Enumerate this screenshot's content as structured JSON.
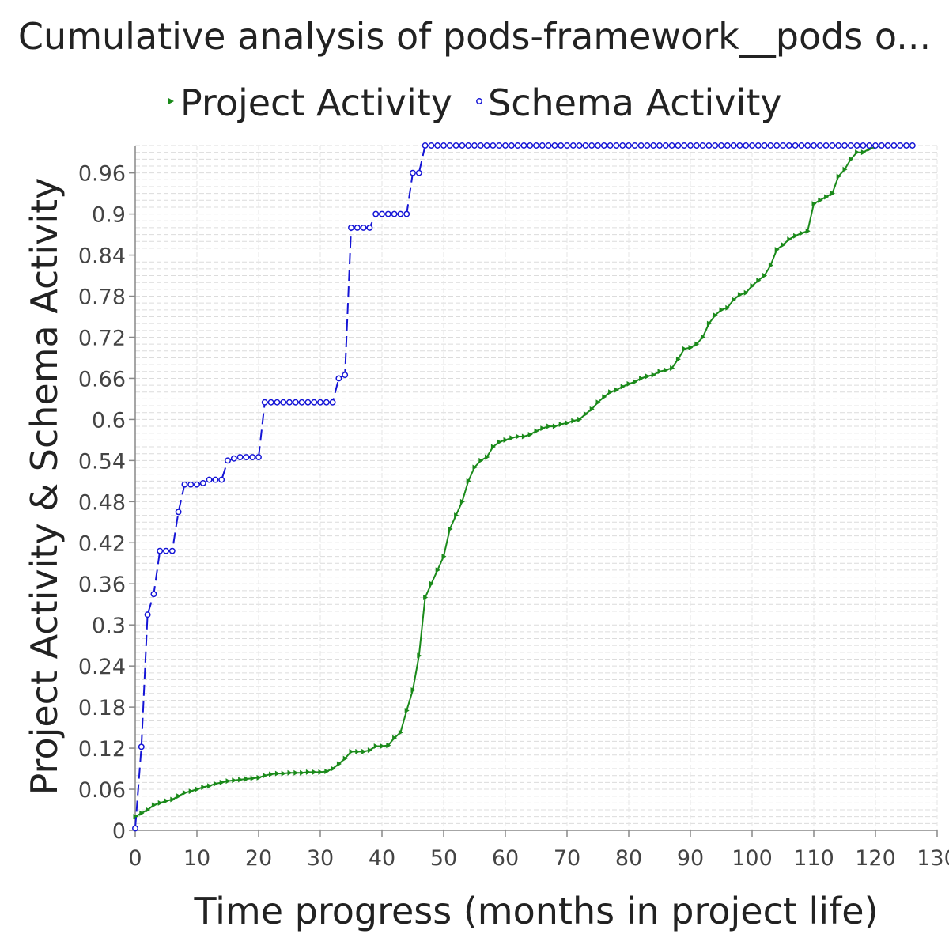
{
  "chart_data": {
    "type": "line",
    "title": "Cumulative analysis of pods-framework__pods o...",
    "xlabel": "Time progress (months in project life)",
    "ylabel": "Project Activity & Schema Activity",
    "xlim": [
      0,
      130
    ],
    "ylim": [
      0,
      1.0
    ],
    "x_ticks": [
      0,
      10,
      20,
      30,
      40,
      50,
      60,
      70,
      80,
      90,
      100,
      110,
      120,
      130
    ],
    "y_ticks": [
      0,
      0.06,
      0.12,
      0.18,
      0.24,
      0.3,
      0.36,
      0.42,
      0.48,
      0.54,
      0.6,
      0.66,
      0.72,
      0.78,
      0.84,
      0.9,
      0.96
    ],
    "grid": true,
    "legend_position": "top",
    "series": [
      {
        "name": "Project Activity",
        "color": "#1a8a1a",
        "marker": "triangle-right",
        "line_style": "solid",
        "x": [
          0,
          1,
          2,
          3,
          4,
          5,
          6,
          7,
          8,
          9,
          10,
          11,
          12,
          13,
          14,
          15,
          16,
          17,
          18,
          19,
          20,
          21,
          22,
          23,
          24,
          25,
          26,
          27,
          28,
          29,
          30,
          31,
          32,
          33,
          34,
          35,
          36,
          37,
          38,
          39,
          40,
          41,
          42,
          43,
          44,
          45,
          46,
          47,
          48,
          49,
          50,
          51,
          52,
          53,
          54,
          55,
          56,
          57,
          58,
          59,
          60,
          61,
          62,
          63,
          64,
          65,
          66,
          67,
          68,
          69,
          70,
          71,
          72,
          73,
          74,
          75,
          76,
          77,
          78,
          79,
          80,
          81,
          82,
          83,
          84,
          85,
          86,
          87,
          88,
          89,
          90,
          91,
          92,
          93,
          94,
          95,
          96,
          97,
          98,
          99,
          100,
          101,
          102,
          103,
          104,
          105,
          106,
          107,
          108,
          109,
          110,
          111,
          112,
          113,
          114,
          115,
          116,
          117,
          118,
          119,
          120,
          121,
          122,
          123,
          124,
          125,
          126
        ],
        "values": [
          0.02,
          0.025,
          0.03,
          0.037,
          0.04,
          0.043,
          0.045,
          0.05,
          0.055,
          0.057,
          0.06,
          0.063,
          0.065,
          0.068,
          0.07,
          0.072,
          0.073,
          0.074,
          0.075,
          0.076,
          0.077,
          0.08,
          0.082,
          0.083,
          0.083,
          0.084,
          0.084,
          0.084,
          0.085,
          0.085,
          0.085,
          0.086,
          0.09,
          0.097,
          0.105,
          0.115,
          0.115,
          0.115,
          0.117,
          0.123,
          0.123,
          0.124,
          0.135,
          0.143,
          0.175,
          0.205,
          0.255,
          0.34,
          0.36,
          0.38,
          0.4,
          0.44,
          0.46,
          0.48,
          0.51,
          0.53,
          0.54,
          0.545,
          0.56,
          0.567,
          0.57,
          0.573,
          0.575,
          0.575,
          0.578,
          0.583,
          0.587,
          0.59,
          0.59,
          0.593,
          0.595,
          0.598,
          0.6,
          0.608,
          0.615,
          0.625,
          0.633,
          0.64,
          0.643,
          0.648,
          0.652,
          0.655,
          0.66,
          0.663,
          0.665,
          0.67,
          0.672,
          0.675,
          0.688,
          0.703,
          0.705,
          0.71,
          0.72,
          0.74,
          0.752,
          0.76,
          0.763,
          0.775,
          0.782,
          0.785,
          0.795,
          0.803,
          0.81,
          0.825,
          0.848,
          0.855,
          0.863,
          0.868,
          0.872,
          0.875,
          0.915,
          0.92,
          0.925,
          0.93,
          0.955,
          0.965,
          0.98,
          0.99,
          0.99,
          0.995,
          0.998,
          1.0,
          1.0,
          1.0,
          1.0,
          1.0,
          1.0
        ]
      },
      {
        "name": "Schema Activity",
        "color": "#1515d6",
        "marker": "circle",
        "line_style": "dashed",
        "x": [
          0,
          1,
          2,
          3,
          4,
          5,
          6,
          7,
          8,
          9,
          10,
          11,
          12,
          13,
          14,
          15,
          16,
          17,
          18,
          19,
          20,
          21,
          22,
          23,
          24,
          25,
          26,
          27,
          28,
          29,
          30,
          31,
          32,
          33,
          34,
          35,
          36,
          37,
          38,
          39,
          40,
          41,
          42,
          43,
          44,
          45,
          46,
          47,
          48,
          49,
          50,
          51,
          52,
          53,
          54,
          55,
          56,
          57,
          58,
          59,
          60,
          61,
          62,
          63,
          64,
          65,
          66,
          67,
          68,
          69,
          70,
          71,
          72,
          73,
          74,
          75,
          76,
          77,
          78,
          79,
          80,
          81,
          82,
          83,
          84,
          85,
          86,
          87,
          88,
          89,
          90,
          91,
          92,
          93,
          94,
          95,
          96,
          97,
          98,
          99,
          100,
          101,
          102,
          103,
          104,
          105,
          106,
          107,
          108,
          109,
          110,
          111,
          112,
          113,
          114,
          115,
          116,
          117,
          118,
          119,
          120,
          121,
          122,
          123,
          124,
          125,
          126
        ],
        "values": [
          0.003,
          0.122,
          0.315,
          0.345,
          0.408,
          0.408,
          0.408,
          0.465,
          0.505,
          0.505,
          0.505,
          0.507,
          0.512,
          0.512,
          0.512,
          0.54,
          0.543,
          0.545,
          0.545,
          0.545,
          0.545,
          0.625,
          0.625,
          0.625,
          0.625,
          0.625,
          0.625,
          0.625,
          0.625,
          0.625,
          0.625,
          0.625,
          0.625,
          0.66,
          0.665,
          0.88,
          0.88,
          0.88,
          0.88,
          0.9,
          0.9,
          0.9,
          0.9,
          0.9,
          0.9,
          0.96,
          0.96,
          1.0,
          1.0,
          1.0,
          1.0,
          1.0,
          1.0,
          1.0,
          1.0,
          1.0,
          1.0,
          1.0,
          1.0,
          1.0,
          1.0,
          1.0,
          1.0,
          1.0,
          1.0,
          1.0,
          1.0,
          1.0,
          1.0,
          1.0,
          1.0,
          1.0,
          1.0,
          1.0,
          1.0,
          1.0,
          1.0,
          1.0,
          1.0,
          1.0,
          1.0,
          1.0,
          1.0,
          1.0,
          1.0,
          1.0,
          1.0,
          1.0,
          1.0,
          1.0,
          1.0,
          1.0,
          1.0,
          1.0,
          1.0,
          1.0,
          1.0,
          1.0,
          1.0,
          1.0,
          1.0,
          1.0,
          1.0,
          1.0,
          1.0,
          1.0,
          1.0,
          1.0,
          1.0,
          1.0,
          1.0,
          1.0,
          1.0,
          1.0,
          1.0,
          1.0,
          1.0,
          1.0,
          1.0,
          1.0,
          1.0,
          1.0,
          1.0,
          1.0,
          1.0,
          1.0,
          1.0
        ]
      }
    ]
  }
}
